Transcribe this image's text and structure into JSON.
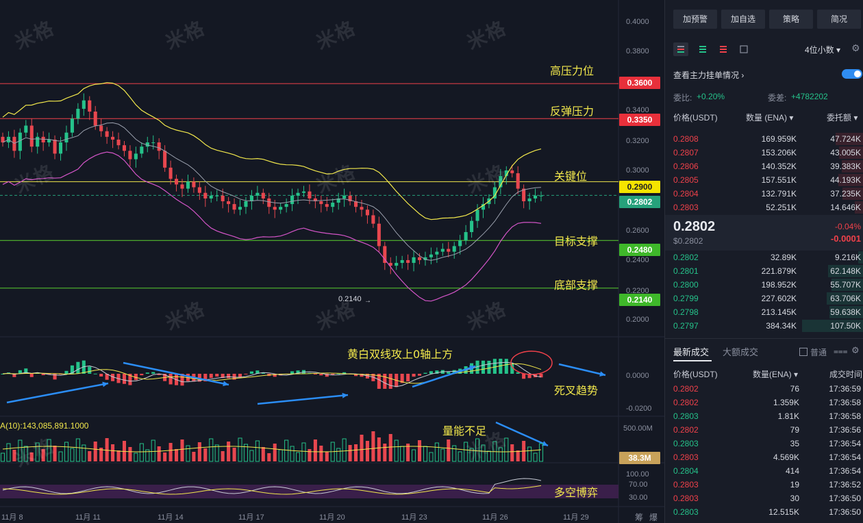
{
  "watermark": "米格",
  "price_axis": [
    "0.4000",
    "0.3800",
    "0.3600",
    "0.3400",
    "0.3200",
    "0.3000",
    "0.2800",
    "0.2600",
    "0.2400",
    "0.2200",
    "0.2000"
  ],
  "levels": [
    {
      "label": "0.3600",
      "value": 0.36,
      "color": "#f0414a",
      "bg": "#e8303b"
    },
    {
      "label": "0.3350",
      "value": 0.335,
      "color": "#f0414a",
      "bg": "#e8303b"
    },
    {
      "label": "0.2900",
      "value": 0.29,
      "color": "#f2e84c",
      "bg": "#f5e400"
    },
    {
      "label": "0.2480",
      "value": 0.248,
      "color": "#5bd12f",
      "bg": "#3fb82a"
    },
    {
      "label": "0.2140",
      "value": 0.214,
      "color": "#5bd12f",
      "bg": "#3fb82a"
    }
  ],
  "current_price_tag": "0.2802",
  "annotations": {
    "high_pressure": "高压力位",
    "rebound_pressure": "反弹压力",
    "key_level": "关键位",
    "target_support": "目标支撑",
    "bottom_support": "底部支撑",
    "macd_note": "黄白双线攻上0轴上方",
    "death_cross": "死叉趋势",
    "volume_note": "量能不足",
    "long_short": "多空博弈"
  },
  "low_marker": "0.2140",
  "macd_axis": [
    "0.0000",
    "-0.0200"
  ],
  "volume_header": "A(10):143,085,891.1000",
  "volume_axis": [
    "500.00M"
  ],
  "volume_tag": "38.3M",
  "rsi_axis": [
    "100.00",
    "70.00",
    "30.00"
  ],
  "x_labels": [
    "11月 8",
    "11月 11",
    "11月 14",
    "11月 17",
    "11月 20",
    "11月 23",
    "11月 26",
    "11月 29"
  ],
  "corner_labels": [
    "筹",
    "爆"
  ],
  "chart_data": {
    "type": "candlestick",
    "title": "",
    "dates": [
      "11月 8",
      "11月 11",
      "11月 14",
      "11月 17",
      "11月 20",
      "11月 23",
      "11月 26",
      "11月 29"
    ],
    "ylim": [
      0.19,
      0.405
    ],
    "closes": [
      0.318,
      0.322,
      0.312,
      0.325,
      0.33,
      0.315,
      0.322,
      0.318,
      0.32,
      0.31,
      0.318,
      0.325,
      0.335,
      0.342,
      0.348,
      0.34,
      0.33,
      0.326,
      0.322,
      0.32,
      0.316,
      0.312,
      0.306,
      0.31,
      0.315,
      0.318,
      0.318,
      0.312,
      0.3,
      0.292,
      0.288,
      0.285,
      0.29,
      0.286,
      0.282,
      0.278,
      0.28,
      0.28,
      0.276,
      0.274,
      0.27,
      0.272,
      0.276,
      0.28,
      0.282,
      0.278,
      0.272,
      0.27,
      0.272,
      0.274,
      0.28,
      0.282,
      0.283,
      0.278,
      0.276,
      0.274,
      0.272,
      0.275,
      0.278,
      0.28,
      0.276,
      0.272,
      0.27,
      0.266,
      0.26,
      0.244,
      0.232,
      0.23,
      0.232,
      0.234,
      0.232,
      0.236,
      0.234,
      0.236,
      0.238,
      0.24,
      0.242,
      0.24,
      0.244,
      0.248,
      0.254,
      0.262,
      0.27,
      0.274,
      0.278,
      0.286,
      0.294,
      0.298,
      0.296,
      0.285,
      0.276,
      0.278,
      0.28,
      0.28
    ],
    "bollinger_upper_end": 0.302,
    "bollinger_lower_end": 0.24,
    "volume_tag_value": 38.3,
    "price_levels": [
      0.36,
      0.335,
      0.29,
      0.248,
      0.214
    ],
    "current_price": 0.2802
  },
  "right_panel": {
    "buttons": [
      "加预警",
      "加自选",
      "策略",
      "简况"
    ],
    "decimals": "4位小数",
    "main_orders": "查看主力挂单情况",
    "ratio_label": "委比:",
    "ratio_value": "+0.20%",
    "diff_label": "委差:",
    "diff_value": "+4782202",
    "headers": [
      "价格(USDT)",
      "数量 (ENA)",
      "委托额"
    ],
    "asks": [
      {
        "p": "0.2808",
        "q": "169.959K",
        "t": "47.724K",
        "d": 0.45
      },
      {
        "p": "0.2807",
        "q": "153.206K",
        "t": "43.005K",
        "d": 0.4
      },
      {
        "p": "0.2806",
        "q": "140.352K",
        "t": "39.383K",
        "d": 0.36
      },
      {
        "p": "0.2805",
        "q": "157.551K",
        "t": "44.193K",
        "d": 0.41
      },
      {
        "p": "0.2804",
        "q": "132.791K",
        "t": "37.235K",
        "d": 0.35
      },
      {
        "p": "0.2803",
        "q": "52.251K",
        "t": "14.646K",
        "d": 0.14
      }
    ],
    "last_price": "0.2802",
    "last_price_usd": "$0.2802",
    "change_pct": "-0.04%",
    "change_abs": "-0.0001",
    "bids": [
      {
        "p": "0.2802",
        "q": "32.89K",
        "t": "9.216K",
        "d": 0.09
      },
      {
        "p": "0.2801",
        "q": "221.879K",
        "t": "62.148K",
        "d": 0.58
      },
      {
        "p": "0.2800",
        "q": "198.952K",
        "t": "55.707K",
        "d": 0.52
      },
      {
        "p": "0.2799",
        "q": "227.602K",
        "t": "63.706K",
        "d": 0.6
      },
      {
        "p": "0.2798",
        "q": "213.145K",
        "t": "59.638K",
        "d": 0.56
      },
      {
        "p": "0.2797",
        "q": "384.34K",
        "t": "107.50K",
        "d": 1.0
      }
    ],
    "trades_tabs": [
      "最新成交",
      "大额成交"
    ],
    "trades_checkbox": "普通",
    "trades_headers": [
      "价格(USDT)",
      "数量(ENA)",
      "成交时间"
    ],
    "trades": [
      {
        "p": "0.2802",
        "q": "76",
        "t": "17:36:59",
        "side": "sell"
      },
      {
        "p": "0.2802",
        "q": "1.359K",
        "t": "17:36:58",
        "side": "sell"
      },
      {
        "p": "0.2803",
        "q": "1.81K",
        "t": "17:36:58",
        "side": "buy"
      },
      {
        "p": "0.2802",
        "q": "79",
        "t": "17:36:56",
        "side": "sell"
      },
      {
        "p": "0.2803",
        "q": "35",
        "t": "17:36:54",
        "side": "buy"
      },
      {
        "p": "0.2803",
        "q": "4.569K",
        "t": "17:36:54",
        "side": "sell"
      },
      {
        "p": "0.2804",
        "q": "414",
        "t": "17:36:54",
        "side": "buy"
      },
      {
        "p": "0.2803",
        "q": "19",
        "t": "17:36:52",
        "side": "sell"
      },
      {
        "p": "0.2803",
        "q": "30",
        "t": "17:36:50",
        "side": "sell"
      },
      {
        "p": "0.2803",
        "q": "12.515K",
        "t": "17:36:50",
        "side": "buy"
      }
    ]
  }
}
